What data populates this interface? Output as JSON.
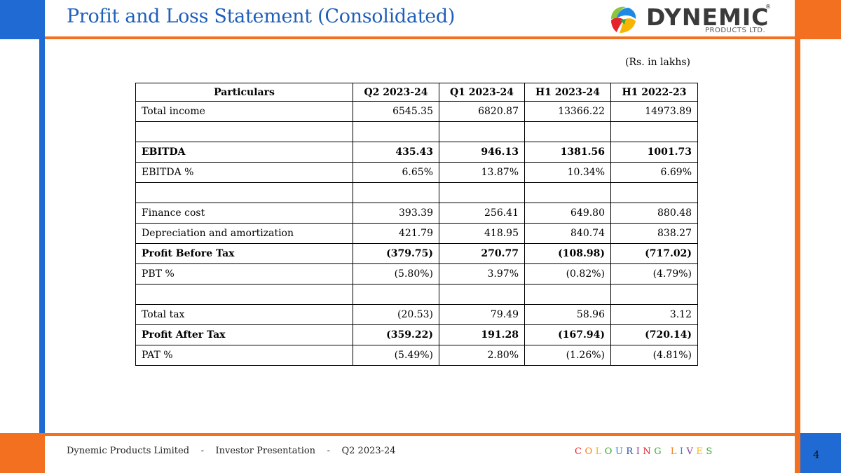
{
  "header": {
    "title": "Profit and Loss Statement (Consolidated)",
    "logo": {
      "name": "DYNEMIC",
      "subtitle": "PRODUCTS LTD.",
      "registered": "®"
    }
  },
  "units_note": "(Rs. in lakhs)",
  "table": {
    "headers": [
      "Particulars",
      "Q2 2023-24",
      "Q1 2023-24",
      "H1 2023-24",
      "H1 2022-23"
    ],
    "rows": [
      {
        "label": "Total income",
        "values": [
          "6545.35",
          "6820.87",
          "13366.22",
          "14973.89"
        ]
      },
      {
        "label": "",
        "values": [
          "",
          "",
          "",
          ""
        ]
      },
      {
        "label": "EBITDA",
        "values": [
          "435.43",
          "946.13",
          "1381.56",
          "1001.73"
        ]
      },
      {
        "label": "EBITDA %",
        "values": [
          "6.65%",
          "13.87%",
          "10.34%",
          "6.69%"
        ]
      },
      {
        "label": "",
        "values": [
          "",
          "",
          "",
          ""
        ]
      },
      {
        "label": "Finance cost",
        "values": [
          "393.39",
          "256.41",
          "649.80",
          "880.48"
        ]
      },
      {
        "label": "Depreciation and amortization",
        "values": [
          "421.79",
          "418.95",
          "840.74",
          "838.27"
        ]
      },
      {
        "label": "Profit Before Tax",
        "values": [
          "(379.75)",
          "270.77",
          "(108.98)",
          "(717.02)"
        ]
      },
      {
        "label": "PBT %",
        "values": [
          "(5.80%)",
          "3.97%",
          "(0.82%)",
          "(4.79%)"
        ]
      },
      {
        "label": "",
        "values": [
          "",
          "",
          "",
          ""
        ]
      },
      {
        "label": "Total tax",
        "values": [
          "(20.53)",
          "79.49",
          "58.96",
          "3.12"
        ]
      },
      {
        "label": "Profit After Tax",
        "values": [
          "(359.22)",
          "191.28",
          "(167.94)",
          "(720.14)"
        ]
      },
      {
        "label": "PAT %",
        "values": [
          "(5.49%)",
          "2.80%",
          "(1.26%)",
          "(4.81%)"
        ]
      }
    ]
  },
  "footer": {
    "text": "Dynemic Products Limited    -    Investor Presentation    -    Q2 2023-24",
    "tagline": "COLOURING LIVES",
    "page_number": "4"
  },
  "colors": {
    "brand_blue": "#1f6bd3",
    "brand_orange": "#f37021",
    "title_blue": "#1e5fb8",
    "tagline_letters": [
      "#e6222c",
      "#f58220",
      "#f7b500",
      "#3aa935",
      "#1e88e5",
      "#1e4fa3",
      "#8e3ea0",
      "#e6222c",
      "#3aa935",
      "#f58220",
      "#1e88e5",
      "#8e3ea0",
      "#f7b500",
      "#3aa935",
      "#1e4fa3"
    ]
  }
}
